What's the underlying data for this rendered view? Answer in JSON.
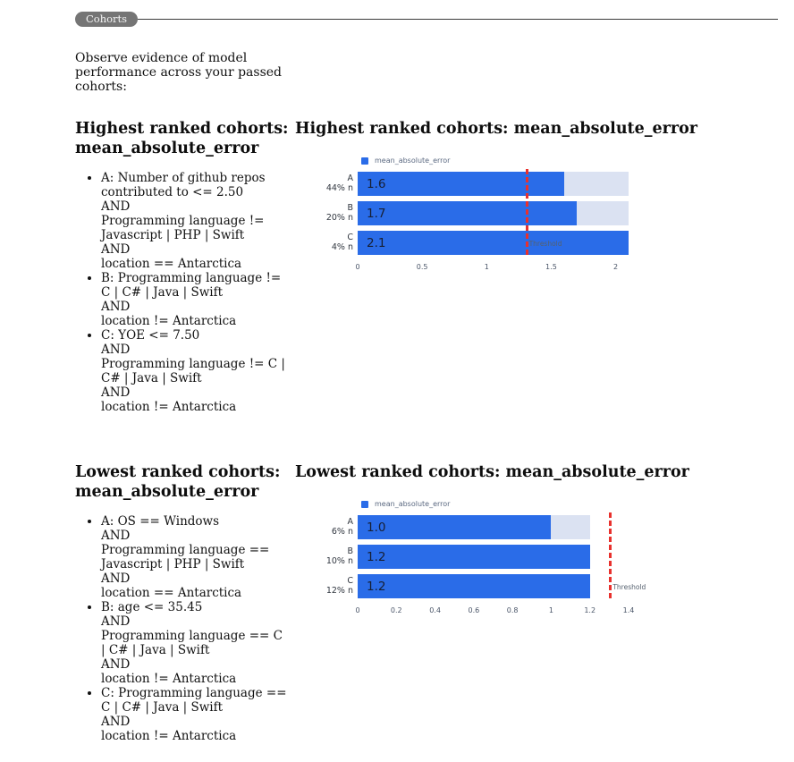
{
  "badge_label": "Cohorts",
  "intro": "Observe evidence of model\nperformance across your passed\ncohorts:",
  "sections": [
    {
      "title": "Highest ranked cohorts: mean_absolute_error",
      "bullets": [
        "A: Number of github repos\ncontributed to <= 2.50\nAND\nProgramming language !=\nJavascript | PHP | Swift\nAND\nlocation == Antarctica",
        "B: Programming language !=\nC | C# | Java | Swift\nAND\nlocation != Antarctica",
        "C: YOE <= 7.50\nAND\nProgramming language != C |\nC# | Java | Swift\nAND\nlocation != Antarctica"
      ]
    },
    {
      "title": "Lowest ranked cohorts: mean_absolute_error",
      "bullets": [
        "A: OS == Windows\nAND\nProgramming language ==\nJavascript | PHP | Swift\nAND\nlocation == Antarctica",
        "B: age <= 35.45\nAND\nProgramming language == C\n| C# | Java | Swift\nAND\nlocation != Antarctica",
        "C: Programming language ==\nC | C# | Java | Swift\nAND\nlocation != Antarctica"
      ]
    }
  ],
  "chart_data": [
    {
      "type": "bar",
      "orientation": "horizontal",
      "title": "Highest ranked cohorts: mean_absolute_error",
      "legend": "mean_absolute_error",
      "bar_color": "#2a6ce8",
      "track_color": "#dbe2f2",
      "threshold_color": "#e8312d",
      "x_max": 2.1,
      "track_max": 2.1,
      "ticks": [
        0,
        0.5,
        1,
        1.5,
        2
      ],
      "tick_labels": [
        "0",
        "0.5",
        "1",
        "1.5",
        "2"
      ],
      "threshold": 1.3,
      "threshold_label": "Threshold",
      "rows": [
        {
          "category": "A",
          "count_label": "44% n",
          "value": 1.6,
          "value_label": "1.6"
        },
        {
          "category": "B",
          "count_label": "20% n",
          "value": 1.7,
          "value_label": "1.7"
        },
        {
          "category": "C",
          "count_label": "4% n",
          "value": 2.1,
          "value_label": "2.1"
        }
      ]
    },
    {
      "type": "bar",
      "orientation": "horizontal",
      "title": "Lowest ranked cohorts: mean_absolute_error",
      "legend": "mean_absolute_error",
      "bar_color": "#2a6ce8",
      "track_color": "#dbe2f2",
      "threshold_color": "#e8312d",
      "x_max": 1.4,
      "track_max": 1.2,
      "ticks": [
        0,
        0.2,
        0.4,
        0.6,
        0.8,
        1,
        1.2,
        1.4
      ],
      "tick_labels": [
        "0",
        "0.2",
        "0.4",
        "0.6",
        "0.8",
        "1",
        "1.2",
        "1.4"
      ],
      "threshold": 1.3,
      "threshold_label": "Threshold",
      "rows": [
        {
          "category": "A",
          "count_label": "6% n",
          "value": 1.0,
          "value_label": "1.0"
        },
        {
          "category": "B",
          "count_label": "10% n",
          "value": 1.2,
          "value_label": "1.2"
        },
        {
          "category": "C",
          "count_label": "12% n",
          "value": 1.2,
          "value_label": "1.2"
        }
      ]
    }
  ]
}
